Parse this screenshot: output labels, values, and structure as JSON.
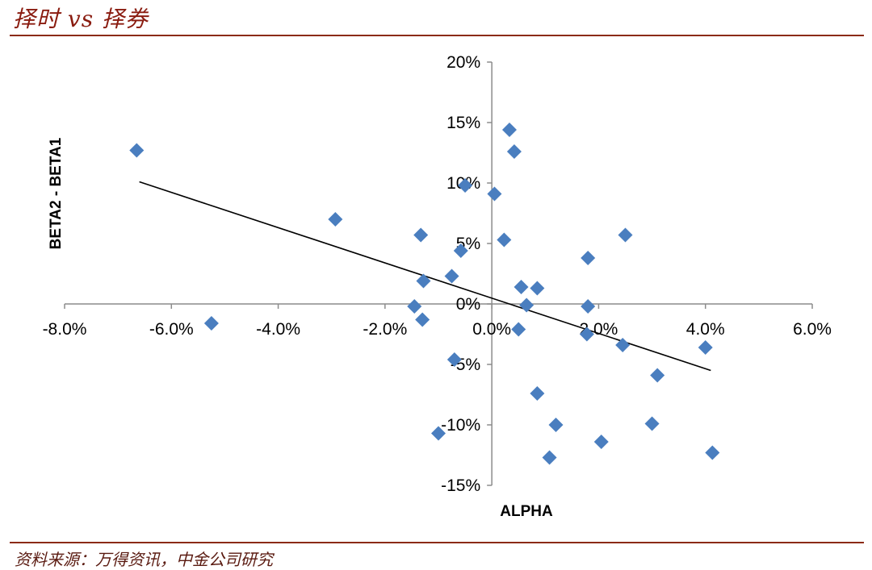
{
  "header": {
    "title": "择时 vs 择券"
  },
  "footer": {
    "source": "资料来源：万得资讯，中金公司研究"
  },
  "colors": {
    "accent": "#8b2a12",
    "marker": "#4a7ebf",
    "trendline": "#000000"
  },
  "chart_data": {
    "type": "scatter",
    "xlabel": "ALPHA",
    "ylabel": "BETA2 - BETA1",
    "xlim": [
      -0.08,
      0.06
    ],
    "ylim": [
      -0.15,
      0.2
    ],
    "x_ticks": [
      -0.08,
      -0.06,
      -0.04,
      -0.02,
      0.0,
      0.02,
      0.04,
      0.06
    ],
    "x_tick_labels": [
      "-8.0%",
      "-6.0%",
      "-4.0%",
      "-2.0%",
      "0.0%",
      "2.0%",
      "4.0%",
      "6.0%"
    ],
    "y_ticks": [
      -0.15,
      -0.1,
      -0.05,
      0.0,
      0.05,
      0.1,
      0.15,
      0.2
    ],
    "y_tick_labels": [
      "-15%",
      "-10%",
      "-5%",
      "0%",
      "5%",
      "10%",
      "15%",
      "20%"
    ],
    "grid": false,
    "marker": "diamond",
    "points": [
      {
        "x": -0.0665,
        "y": 0.127
      },
      {
        "x": -0.0525,
        "y": -0.016
      },
      {
        "x": -0.0293,
        "y": 0.07
      },
      {
        "x": -0.0133,
        "y": 0.057
      },
      {
        "x": -0.0128,
        "y": 0.019
      },
      {
        "x": -0.0145,
        "y": -0.002
      },
      {
        "x": -0.013,
        "y": -0.013
      },
      {
        "x": -0.01,
        "y": -0.107
      },
      {
        "x": -0.0075,
        "y": 0.023
      },
      {
        "x": -0.0058,
        "y": 0.044
      },
      {
        "x": -0.007,
        "y": -0.046
      },
      {
        "x": -0.005,
        "y": 0.098
      },
      {
        "x": 0.0005,
        "y": 0.091
      },
      {
        "x": 0.0023,
        "y": 0.053
      },
      {
        "x": 0.0033,
        "y": 0.144
      },
      {
        "x": 0.0042,
        "y": 0.126
      },
      {
        "x": 0.005,
        "y": -0.021
      },
      {
        "x": 0.0055,
        "y": 0.014
      },
      {
        "x": 0.0065,
        "y": -0.001
      },
      {
        "x": 0.0085,
        "y": 0.013
      },
      {
        "x": 0.0085,
        "y": -0.074
      },
      {
        "x": 0.0108,
        "y": -0.127
      },
      {
        "x": 0.012,
        "y": -0.1
      },
      {
        "x": 0.018,
        "y": 0.038
      },
      {
        "x": 0.018,
        "y": -0.002
      },
      {
        "x": 0.0178,
        "y": -0.025
      },
      {
        "x": 0.0205,
        "y": -0.114
      },
      {
        "x": 0.0245,
        "y": -0.034
      },
      {
        "x": 0.025,
        "y": 0.057
      },
      {
        "x": 0.03,
        "y": -0.099
      },
      {
        "x": 0.031,
        "y": -0.059
      },
      {
        "x": 0.04,
        "y": -0.036
      },
      {
        "x": 0.0413,
        "y": -0.123
      }
    ],
    "trendline": {
      "x": [
        -0.066,
        0.041
      ],
      "y": [
        0.101,
        -0.055
      ]
    }
  }
}
